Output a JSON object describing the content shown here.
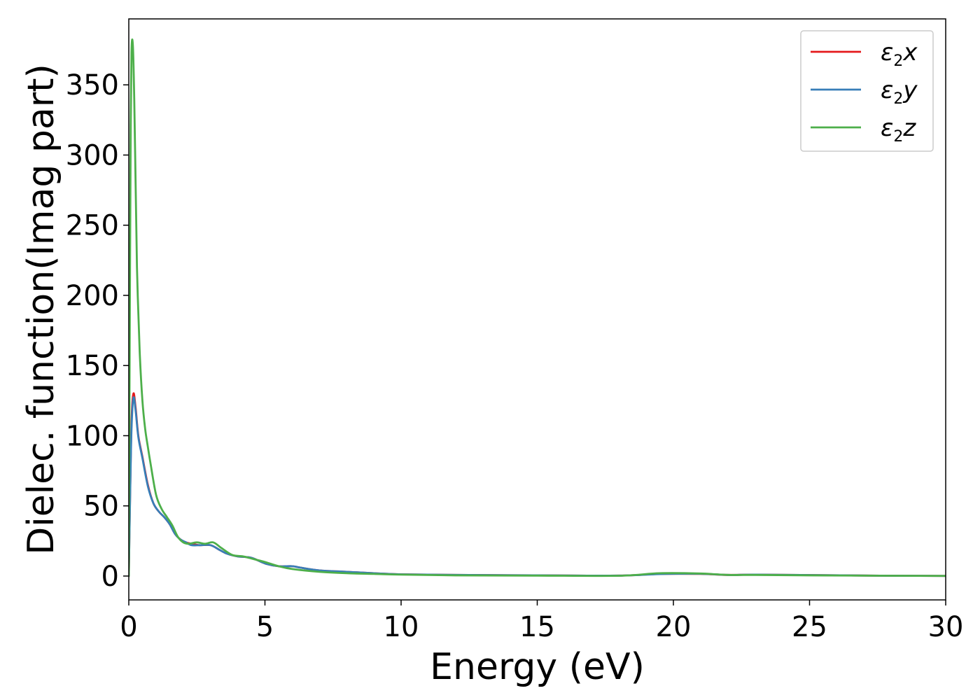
{
  "chart_data": {
    "type": "line",
    "title": "",
    "xlabel": "Energy (eV)",
    "ylabel": "Dielec. function(Imag part)",
    "xlim": [
      0,
      30
    ],
    "ylim": [
      -17,
      397
    ],
    "xticks": [
      0,
      5,
      10,
      15,
      20,
      25,
      30
    ],
    "yticks": [
      0,
      50,
      100,
      150,
      200,
      250,
      300,
      350
    ],
    "grid": false,
    "legend_position": "top-right",
    "series": [
      {
        "name": "ε2x",
        "legend": {
          "base": "ε",
          "sub": "2",
          "suffix": "x"
        },
        "color": "#e41a1c",
        "x": [
          0,
          0.05,
          0.1,
          0.17,
          0.25,
          0.35,
          0.5,
          0.7,
          0.9,
          1.1,
          1.3,
          1.5,
          1.7,
          1.9,
          2.1,
          2.3,
          2.6,
          3.0,
          3.3,
          3.6,
          4.0,
          4.5,
          5.0,
          5.5,
          6.0,
          6.3,
          7.0,
          8.0,
          9.0,
          10,
          12,
          15,
          18,
          19.5,
          21,
          22,
          23,
          25,
          28,
          30
        ],
        "y": [
          0,
          60,
          110,
          130,
          120,
          100,
          85,
          65,
          52,
          46,
          42,
          37,
          30,
          26,
          24,
          23,
          22,
          22,
          19,
          16,
          14,
          13,
          9,
          7,
          7,
          6,
          4,
          3,
          2,
          1.2,
          0.8,
          0.5,
          0.3,
          1.5,
          1.5,
          0.8,
          1,
          0.7,
          0.2,
          0.1
        ]
      },
      {
        "name": "ε2y",
        "legend": {
          "base": "ε",
          "sub": "2",
          "suffix": "y"
        },
        "color": "#377eb8",
        "x": [
          0,
          0.05,
          0.1,
          0.17,
          0.25,
          0.35,
          0.5,
          0.7,
          0.9,
          1.1,
          1.3,
          1.5,
          1.7,
          1.9,
          2.1,
          2.3,
          2.6,
          3.0,
          3.3,
          3.6,
          4.0,
          4.5,
          5.0,
          5.5,
          6.0,
          6.3,
          7.0,
          8.0,
          9.0,
          10,
          12,
          15,
          18,
          19.5,
          21,
          22,
          23,
          25,
          28,
          30
        ],
        "y": [
          0,
          58,
          105,
          127,
          118,
          99,
          84,
          64,
          52,
          46,
          42,
          37,
          30,
          26,
          24,
          22,
          22,
          22,
          19,
          16,
          14,
          13,
          9,
          7,
          7,
          6,
          4,
          3,
          2,
          1.2,
          0.8,
          0.5,
          0.3,
          1.4,
          1.6,
          0.8,
          1,
          0.7,
          0.2,
          0.1
        ]
      },
      {
        "name": "ε2z",
        "legend": {
          "base": "ε",
          "sub": "2",
          "suffix": "z"
        },
        "color": "#4daf4a",
        "x": [
          0,
          0.03,
          0.07,
          0.1,
          0.15,
          0.2,
          0.25,
          0.3,
          0.4,
          0.5,
          0.6,
          0.7,
          0.8,
          1.0,
          1.2,
          1.4,
          1.6,
          1.8,
          2.0,
          2.2,
          2.5,
          2.8,
          3.1,
          3.4,
          3.8,
          4.2,
          4.6,
          5.0,
          5.5,
          6.0,
          7.0,
          8.0,
          9.0,
          10,
          12,
          15,
          18,
          19.5,
          21,
          22,
          23,
          25,
          28,
          30
        ],
        "y": [
          0,
          150,
          320,
          375,
          378,
          340,
          280,
          220,
          160,
          125,
          105,
          92,
          80,
          58,
          48,
          42,
          36,
          28,
          24,
          23,
          24,
          23,
          24,
          20,
          15,
          14,
          12,
          10,
          7,
          5,
          3,
          2,
          1.5,
          1,
          0.5,
          0.3,
          0.2,
          2,
          1.8,
          0.8,
          0.8,
          0.5,
          0.2,
          0.1
        ]
      }
    ]
  }
}
